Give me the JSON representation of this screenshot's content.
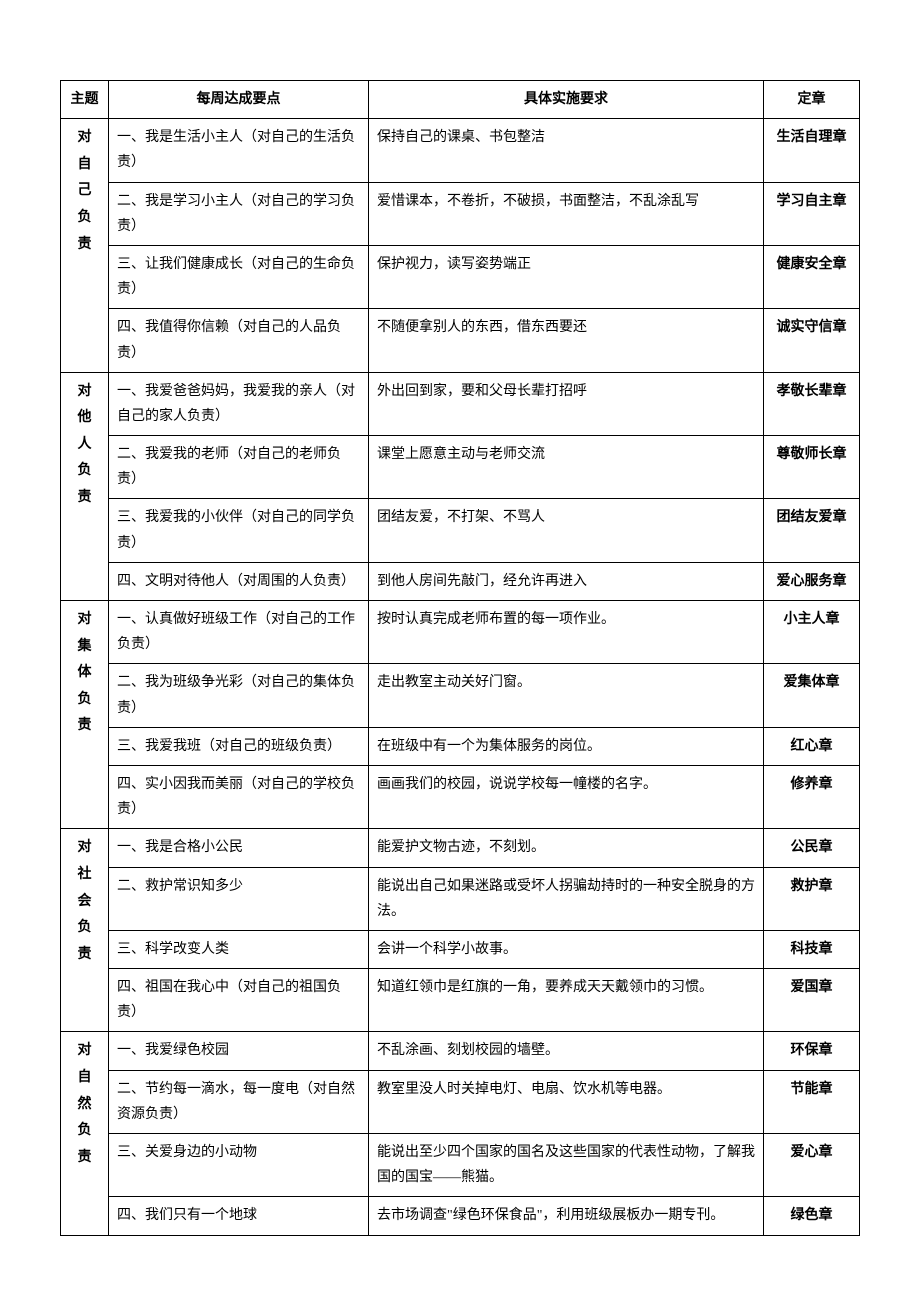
{
  "headers": {
    "theme": "主题",
    "weekly": "每周达成要点",
    "implementation": "具体实施要求",
    "badge": "定章"
  },
  "groups": [
    {
      "theme_chars": [
        "对",
        "自",
        "己",
        "负",
        "责"
      ],
      "rows": [
        {
          "weekly": "一、我是生活小主人（对自己的生活负责）",
          "impl": "保持自己的课桌、书包整洁",
          "badge": "生活自理章"
        },
        {
          "weekly": "二、我是学习小主人（对自己的学习负责）",
          "impl": "爱惜课本，不卷折，不破损，书面整洁，不乱涂乱写",
          "badge": "学习自主章"
        },
        {
          "weekly": "三、让我们健康成长（对自己的生命负责）",
          "impl": "保护视力，读写姿势端正",
          "badge": "健康安全章"
        },
        {
          "weekly": "四、我值得你信赖（对自己的人品负责）",
          "impl": "不随便拿别人的东西，借东西要还",
          "badge": "诚实守信章"
        }
      ]
    },
    {
      "theme_chars": [
        "对",
        "他",
        "人",
        "负",
        "责"
      ],
      "rows": [
        {
          "weekly": "一、我爱爸爸妈妈，我爱我的亲人（对自己的家人负责）",
          "impl": "外出回到家，要和父母长辈打招呼",
          "badge": "孝敬长辈章"
        },
        {
          "weekly": "二、我爱我的老师（对自己的老师负责）",
          "impl": "课堂上愿意主动与老师交流",
          "badge": "尊敬师长章"
        },
        {
          "weekly": "三、我爱我的小伙伴（对自己的同学负责）",
          "impl": "团结友爱，不打架、不骂人",
          "badge": "团结友爱章"
        },
        {
          "weekly": "四、文明对待他人（对周围的人负责）",
          "impl": "到他人房间先敲门，经允许再进入",
          "badge": "爱心服务章"
        }
      ]
    },
    {
      "theme_chars": [
        "对",
        "集",
        "体",
        "负",
        "责"
      ],
      "rows": [
        {
          "weekly": "一、认真做好班级工作（对自己的工作负责）",
          "impl": "按时认真完成老师布置的每一项作业。",
          "badge": "小主人章"
        },
        {
          "weekly": "二、我为班级争光彩（对自己的集体负责）",
          "impl": "走出教室主动关好门窗。",
          "badge": "爱集体章"
        },
        {
          "weekly": "三、我爱我班（对自己的班级负责）",
          "impl": "在班级中有一个为集体服务的岗位。",
          "badge": "红心章"
        },
        {
          "weekly": "四、实小因我而美丽（对自己的学校负责）",
          "impl": "画画我们的校园，说说学校每一幢楼的名字。",
          "badge": "修养章"
        }
      ]
    },
    {
      "theme_chars": [
        "对",
        "社",
        "会",
        "负",
        "责"
      ],
      "rows": [
        {
          "weekly": "一、我是合格小公民",
          "impl": "能爱护文物古迹，不刻划。",
          "badge": "公民章"
        },
        {
          "weekly": "二、救护常识知多少",
          "impl": "能说出自己如果迷路或受坏人拐骗劫持时的一种安全脱身的方法。",
          "badge": "救护章"
        },
        {
          "weekly": "三、科学改变人类",
          "impl": "会讲一个科学小故事。",
          "badge": "科技章"
        },
        {
          "weekly": "四、祖国在我心中（对自己的祖国负责）",
          "impl": "知道红领巾是红旗的一角，要养成天天戴领巾的习惯。",
          "badge": "爱国章"
        }
      ]
    },
    {
      "theme_chars": [
        "对",
        "自",
        "然",
        "负",
        "责"
      ],
      "rows": [
        {
          "weekly": "一、我爱绿色校园",
          "impl": "不乱涂画、刻划校园的墙壁。",
          "badge": "环保章"
        },
        {
          "weekly": "二、节约每一滴水，每一度电（对自然资源负责）",
          "impl": "教室里没人时关掉电灯、电扇、饮水机等电器。",
          "badge": "节能章"
        },
        {
          "weekly": "三、关爱身边的小动物",
          "impl": "能说出至少四个国家的国名及这些国家的代表性动物，了解我国的国宝——熊猫。",
          "badge": "爱心章"
        },
        {
          "weekly": "四、我们只有一个地球",
          "impl": "去市场调查\"绿色环保食品\"，利用班级展板办一期专刊。",
          "badge": "绿色章"
        }
      ]
    }
  ]
}
